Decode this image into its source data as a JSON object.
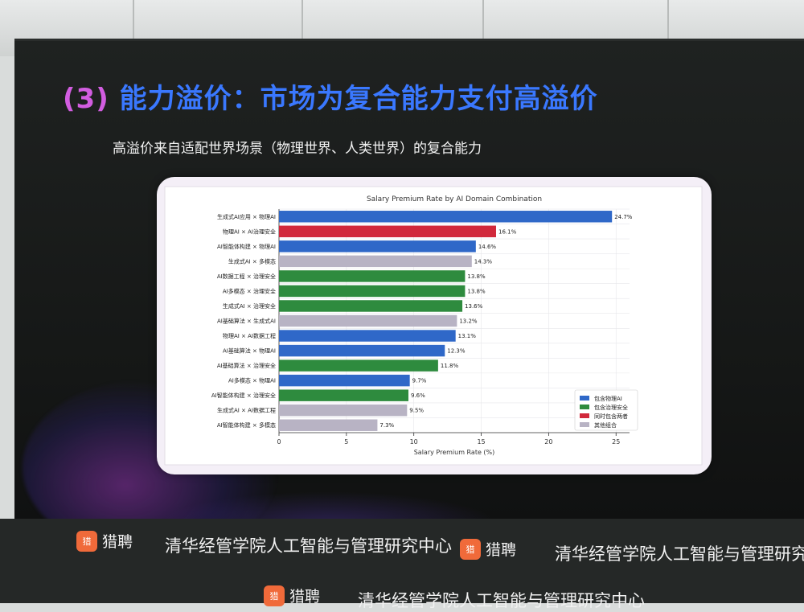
{
  "slide": {
    "title_num": "(3)",
    "title": "能力溢价：市场为复合能力支付高溢价",
    "subtitle": "高溢价来自适配世界场景（物理世界、人类世界）的复合能力"
  },
  "footer": {
    "brand": "猎聘",
    "institute": "清华经管学院人工智能与管理研究中心",
    "logo_char": "猎聘"
  },
  "colors": {
    "physical": "#2f68c8",
    "governance": "#2e8b3e",
    "both": "#d1283b",
    "other": "#b8b3c4"
  },
  "chart_data": {
    "type": "bar",
    "orientation": "horizontal",
    "title": "Salary Premium Rate by AI Domain Combination",
    "xlabel": "Salary Premium Rate (%)",
    "xlim": [
      0,
      26
    ],
    "xticks": [
      0,
      5,
      10,
      15,
      20,
      25
    ],
    "grid": true,
    "legend_position": "bottom-right",
    "legend": [
      {
        "key": "physical",
        "label": "包含物理AI"
      },
      {
        "key": "governance",
        "label": "包含治理安全"
      },
      {
        "key": "both",
        "label": "同时包含两者"
      },
      {
        "key": "other",
        "label": "其他组合"
      }
    ],
    "bars": [
      {
        "label": "生成式AI应用 × 物理AI",
        "value": 24.7,
        "value_label": "24.7%",
        "group": "physical"
      },
      {
        "label": "物理AI × AI治理安全",
        "value": 16.1,
        "value_label": "16.1%",
        "group": "both"
      },
      {
        "label": "AI智能体构建 × 物理AI",
        "value": 14.6,
        "value_label": "14.6%",
        "group": "physical"
      },
      {
        "label": "生成式AI × 多模态",
        "value": 14.3,
        "value_label": "14.3%",
        "group": "other"
      },
      {
        "label": "AI数据工程 × 治理安全",
        "value": 13.8,
        "value_label": "13.8%",
        "group": "governance"
      },
      {
        "label": "AI多模态 × 治理安全",
        "value": 13.8,
        "value_label": "13.8%",
        "group": "governance"
      },
      {
        "label": "生成式AI × 治理安全",
        "value": 13.6,
        "value_label": "13.6%",
        "group": "governance"
      },
      {
        "label": "AI基础算法 × 生成式AI",
        "value": 13.2,
        "value_label": "13.2%",
        "group": "other"
      },
      {
        "label": "物理AI × AI数据工程",
        "value": 13.1,
        "value_label": "13.1%",
        "group": "physical"
      },
      {
        "label": "AI基础算法 × 物理AI",
        "value": 12.3,
        "value_label": "12.3%",
        "group": "physical"
      },
      {
        "label": "AI基础算法 × 治理安全",
        "value": 11.8,
        "value_label": "11.8%",
        "group": "governance"
      },
      {
        "label": "AI多模态 × 物理AI",
        "value": 9.7,
        "value_label": "9.7%",
        "group": "physical"
      },
      {
        "label": "AI智能体构建 × 治理安全",
        "value": 9.6,
        "value_label": "9.6%",
        "group": "governance"
      },
      {
        "label": "生成式AI × AI数据工程",
        "value": 9.5,
        "value_label": "9.5%",
        "group": "other"
      },
      {
        "label": "AI智能体构建 × 多模态",
        "value": 7.3,
        "value_label": "7.3%",
        "group": "other"
      }
    ]
  }
}
